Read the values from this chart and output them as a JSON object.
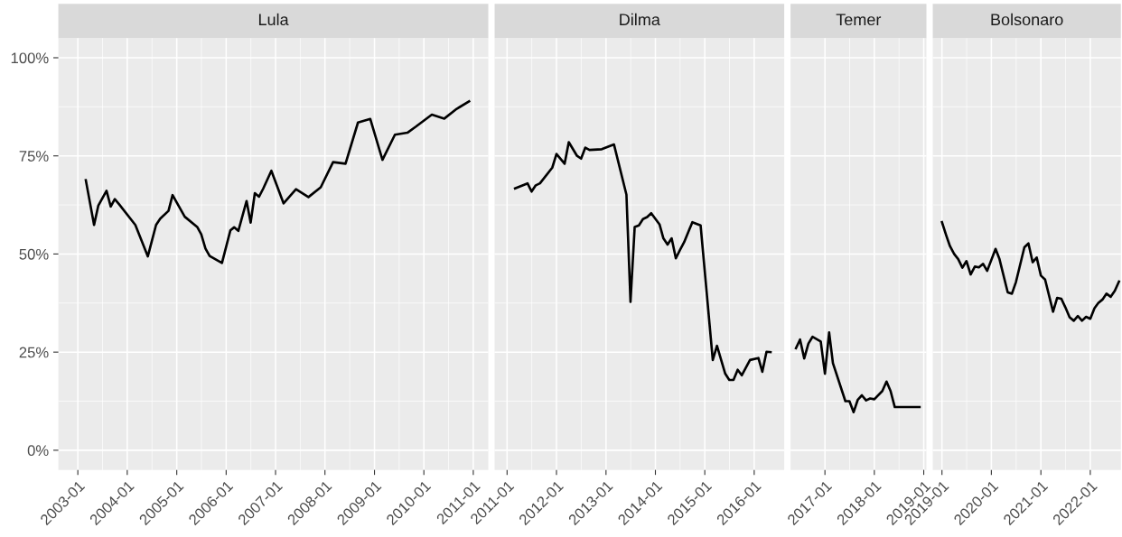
{
  "chart_data": [
    {
      "type": "line",
      "title": "Lula",
      "color": "#000000",
      "grid": true,
      "tick_labels": "xy",
      "x": [
        "2003-03",
        "2003-05",
        "2003-06",
        "2003-08",
        "2003-09",
        "2003-10",
        "2003-11",
        "2004-03",
        "2004-06",
        "2004-08",
        "2004-09",
        "2004-11",
        "2004-12",
        "2005-03",
        "2005-06",
        "2005-07",
        "2005-08",
        "2005-09",
        "2005-12",
        "2006-02",
        "2006-03",
        "2006-04",
        "2006-06",
        "2006-07",
        "2006-08",
        "2006-09",
        "2006-10",
        "2006-12",
        "2007-03",
        "2007-06",
        "2007-09",
        "2007-12",
        "2008-03",
        "2008-06",
        "2008-09",
        "2008-12",
        "2009-03",
        "2009-06",
        "2009-09",
        "2009-11",
        "2010-03",
        "2010-06",
        "2010-09",
        "2010-12"
      ],
      "values": [
        68.8,
        57.4,
        62.3,
        66.1,
        62.1,
        64.0,
        62.7,
        57.4,
        49.4,
        57.4,
        59.0,
        61.0,
        65.0,
        59.5,
        56.9,
        55.0,
        51.4,
        49.5,
        47.7,
        56.0,
        56.8,
        55.9,
        63.5,
        58.0,
        65.5,
        64.6,
        66.6,
        71.2,
        62.9,
        66.5,
        64.5,
        67.0,
        73.4,
        73.0,
        83.5,
        84.4,
        74.0,
        80.4,
        80.9,
        82.4,
        85.5,
        84.5,
        87.0,
        88.9
      ],
      "xlim": [
        "2002-08-10",
        "2011-04-22"
      ],
      "xticks": [
        {
          "value": "2003-01",
          "label": "2003-01"
        },
        {
          "value": "2004-01",
          "label": "2004-01"
        },
        {
          "value": "2005-01",
          "label": "2005-01"
        },
        {
          "value": "2006-01",
          "label": "2006-01"
        },
        {
          "value": "2007-01",
          "label": "2007-01"
        },
        {
          "value": "2008-01",
          "label": "2008-01"
        },
        {
          "value": "2009-01",
          "label": "2009-01"
        },
        {
          "value": "2010-01",
          "label": "2010-01"
        },
        {
          "value": "2011-01",
          "label": "2011-01"
        }
      ],
      "ylim": [
        -5,
        105
      ],
      "yticks": [
        {
          "value": 0,
          "label": "0%"
        },
        {
          "value": 25,
          "label": "25%"
        },
        {
          "value": 50,
          "label": "50%"
        },
        {
          "value": 75,
          "label": "75%"
        },
        {
          "value": 100,
          "label": "100%"
        }
      ]
    },
    {
      "type": "line",
      "title": "Dilma",
      "color": "#000000",
      "grid": true,
      "tick_labels": "x",
      "x": [
        "2011-03",
        "2011-06",
        "2011-07",
        "2011-08",
        "2011-09",
        "2011-12",
        "2012-01",
        "2012-03",
        "2012-04",
        "2012-06",
        "2012-07",
        "2012-08",
        "2012-09",
        "2012-12",
        "2013-03",
        "2013-06",
        "2013-07",
        "2013-08",
        "2013-09",
        "2013-10",
        "2013-11",
        "2013-12",
        "2014-02",
        "2014-03",
        "2014-04",
        "2014-05",
        "2014-06",
        "2014-07",
        "2014-08",
        "2014-10",
        "2014-12",
        "2015-03",
        "2015-04",
        "2015-06",
        "2015-07",
        "2015-08",
        "2015-09",
        "2015-10",
        "2015-12",
        "2016-02",
        "2016-03",
        "2016-04",
        "2016-05"
      ],
      "values": [
        66.7,
        68.0,
        65.9,
        67.5,
        68.0,
        72.0,
        75.5,
        73.0,
        78.5,
        75.0,
        74.3,
        77.1,
        76.5,
        76.7,
        77.9,
        65.1,
        37.8,
        56.9,
        57.3,
        58.9,
        59.4,
        60.4,
        57.5,
        54.0,
        52.4,
        54.0,
        48.9,
        51.0,
        53.0,
        58.1,
        57.3,
        23.0,
        26.6,
        19.5,
        17.9,
        17.9,
        20.5,
        19.1,
        23.0,
        23.5,
        20.0,
        25.1,
        25.0
      ],
      "xlim": [
        "2010-10-01",
        "2016-08-10"
      ],
      "xticks": [
        {
          "value": "2011-01",
          "label": "2011-01"
        },
        {
          "value": "2012-01",
          "label": "2012-01"
        },
        {
          "value": "2013-01",
          "label": "2013-01"
        },
        {
          "value": "2014-01",
          "label": "2014-01"
        },
        {
          "value": "2015-01",
          "label": "2015-01"
        },
        {
          "value": "2016-01",
          "label": "2016-01"
        }
      ],
      "ylim": [
        -5,
        105
      ],
      "yticks": [
        {
          "value": 0,
          "label": null
        },
        {
          "value": 25,
          "label": null
        },
        {
          "value": 50,
          "label": null
        },
        {
          "value": 75,
          "label": null
        },
        {
          "value": 100,
          "label": null
        }
      ]
    },
    {
      "type": "line",
      "title": "Temer",
      "color": "#000000",
      "grid": true,
      "tick_labels": "x",
      "x": [
        "2016-06",
        "2016-07",
        "2016-08",
        "2016-09",
        "2016-10",
        "2016-12",
        "2017-01",
        "2017-02",
        "2017-03",
        "2017-06",
        "2017-07",
        "2017-08",
        "2017-09",
        "2017-10",
        "2017-11",
        "2017-12",
        "2018-01",
        "2018-03",
        "2018-04",
        "2018-05",
        "2018-06",
        "2018-12"
      ],
      "values": [
        26.0,
        28.2,
        23.4,
        27.2,
        28.9,
        27.7,
        19.5,
        30.0,
        22.2,
        12.5,
        12.5,
        9.7,
        12.9,
        14.0,
        12.7,
        13.2,
        13.0,
        15.1,
        17.5,
        15.1,
        11.0,
        11.0
      ],
      "xlim": [
        "2016-04-22",
        "2019-01-21"
      ],
      "xticks": [
        {
          "value": "2017-01",
          "label": "2017-01"
        },
        {
          "value": "2018-01",
          "label": "2018-01"
        },
        {
          "value": "2019-01",
          "label": "2019-01"
        }
      ],
      "ylim": [
        -5,
        105
      ],
      "yticks": [
        {
          "value": 0,
          "label": null
        },
        {
          "value": 25,
          "label": null
        },
        {
          "value": 50,
          "label": null
        },
        {
          "value": 75,
          "label": null
        },
        {
          "value": 100,
          "label": null
        }
      ]
    },
    {
      "type": "line",
      "title": "Bolsonaro",
      "color": "#000000",
      "grid": true,
      "tick_labels": "x",
      "x": [
        "2019-01",
        "2019-02",
        "2019-03",
        "2019-04",
        "2019-05",
        "2019-06",
        "2019-07",
        "2019-08",
        "2019-09",
        "2019-10",
        "2019-11",
        "2019-12",
        "2020-02",
        "2020-03",
        "2020-05",
        "2020-06",
        "2020-07",
        "2020-09",
        "2020-10",
        "2020-11",
        "2020-12",
        "2021-01",
        "2021-02",
        "2021-04",
        "2021-05",
        "2021-06",
        "2021-07",
        "2021-08",
        "2021-09",
        "2021-10",
        "2021-11",
        "2021-12",
        "2022-01",
        "2022-02",
        "2022-03",
        "2022-04",
        "2022-05",
        "2022-06",
        "2022-07",
        "2022-08"
      ],
      "values": [
        58.1,
        54.8,
        52.0,
        50.0,
        48.7,
        46.5,
        48.2,
        44.8,
        46.8,
        46.6,
        47.5,
        45.7,
        51.3,
        48.7,
        40.2,
        39.9,
        42.9,
        51.7,
        52.7,
        47.9,
        49.1,
        44.5,
        43.5,
        35.3,
        38.8,
        38.6,
        36.4,
        33.9,
        33.0,
        34.2,
        33.0,
        34.0,
        33.5,
        36.2,
        37.5,
        38.4,
        39.9,
        39.1,
        40.6,
        43.0
      ],
      "xlim": [
        "2018-10-25",
        "2022-08-15"
      ],
      "xticks": [
        {
          "value": "2019-01",
          "label": "2019-01"
        },
        {
          "value": "2020-01",
          "label": "2020-01"
        },
        {
          "value": "2021-01",
          "label": "2021-01"
        },
        {
          "value": "2022-01",
          "label": "2022-01"
        }
      ],
      "ylim": [
        -5,
        105
      ],
      "yticks": [
        {
          "value": 0,
          "label": null
        },
        {
          "value": 25,
          "label": null
        },
        {
          "value": 50,
          "label": null
        },
        {
          "value": 75,
          "label": null
        },
        {
          "value": 100,
          "label": null
        }
      ]
    }
  ]
}
